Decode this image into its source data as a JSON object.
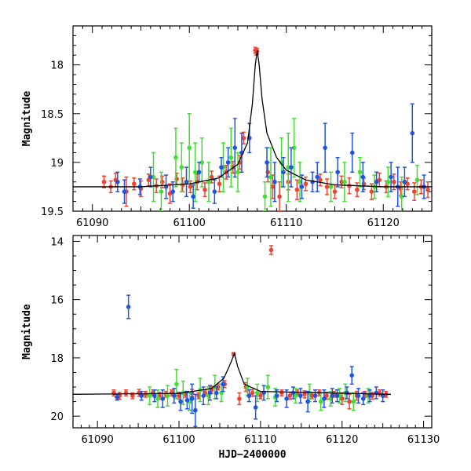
{
  "chart_data": [
    {
      "type": "scatter",
      "panel": "top",
      "title": "",
      "xlabel": "",
      "ylabel": "Magnitude",
      "xlim": [
        61088,
        61125
      ],
      "ylim": [
        19.5,
        17.6
      ],
      "y_inverted": true,
      "xticks": [
        61090,
        61100,
        61110,
        61120
      ],
      "xtick_labels": [
        "61090",
        "61100",
        "61110",
        "61120"
      ],
      "yticks": [
        18,
        18.5,
        19,
        19.5
      ],
      "ytick_labels": [
        "18",
        "18.5",
        "19",
        "19.5"
      ],
      "model_curve": {
        "x": [
          61088,
          61095,
          61100,
          61103,
          61105,
          61106,
          61106.5,
          61106.8,
          61107,
          61107.2,
          61107.5,
          61108,
          61109,
          61110,
          61112,
          61115,
          61120,
          61125
        ],
        "y": [
          19.25,
          19.25,
          19.22,
          19.16,
          19.02,
          18.8,
          18.4,
          18.0,
          17.85,
          18.0,
          18.35,
          18.7,
          18.95,
          19.08,
          19.18,
          19.23,
          19.25,
          19.25
        ]
      },
      "series": [
        {
          "name": "red",
          "color": "#ee4433",
          "x": [
            61091.2,
            61091.9,
            61092.4,
            61093.5,
            61094.3,
            61095.0,
            61095.8,
            61096.6,
            61097.2,
            61098.0,
            61098.7,
            61099.3,
            61100.1,
            61100.8,
            61101.6,
            61102.3,
            61103.1,
            61103.8,
            61104.5,
            61105.2,
            61105.6,
            61106.8,
            61106.9,
            61107.0,
            61108.1,
            61108.6,
            61109.3,
            61110.2,
            61111.1,
            61112.0,
            61113.5,
            61114.2,
            61115.0,
            61115.7,
            61116.5,
            61117.3,
            61118.0,
            61118.8,
            61119.6,
            61120.3,
            61121.1,
            61121.8,
            61122.5,
            61123.2,
            61123.9,
            61124.6
          ],
          "y": [
            19.2,
            19.25,
            19.18,
            19.3,
            19.22,
            19.27,
            19.18,
            19.24,
            19.2,
            19.32,
            19.17,
            19.23,
            19.25,
            19.2,
            19.28,
            19.15,
            19.22,
            19.1,
            19.05,
            19.0,
            18.75,
            17.85,
            17.87,
            17.86,
            19.1,
            19.25,
            19.35,
            19.2,
            19.28,
            19.22,
            19.18,
            19.25,
            19.3,
            19.2,
            19.24,
            19.28,
            19.22,
            19.3,
            19.18,
            19.25,
            19.2,
            19.27,
            19.22,
            19.3,
            19.25,
            19.28
          ],
          "yerr": [
            0.06,
            0.06,
            0.07,
            0.15,
            0.06,
            0.08,
            0.06,
            0.07,
            0.06,
            0.1,
            0.06,
            0.07,
            0.06,
            0.08,
            0.07,
            0.06,
            0.08,
            0.07,
            0.06,
            0.07,
            0.06,
            0.03,
            0.03,
            0.03,
            0.1,
            0.12,
            0.15,
            0.08,
            0.1,
            0.07,
            0.06,
            0.08,
            0.07,
            0.06,
            0.08,
            0.07,
            0.06,
            0.08,
            0.07,
            0.06,
            0.08,
            0.07,
            0.06,
            0.09,
            0.07,
            0.08
          ]
        },
        {
          "name": "green",
          "color": "#44dd33",
          "x": [
            61096.3,
            61097.1,
            61098.6,
            61099.2,
            61100.0,
            61100.6,
            61101.3,
            61102.0,
            61103.5,
            61104.3,
            61105.0,
            61107.8,
            61108.4,
            61109.5,
            61110.2,
            61110.8,
            61111.4,
            61114.6,
            61116.0,
            61117.6,
            61119.1,
            61120.5,
            61121.9,
            61123.5
          ],
          "y": [
            19.15,
            19.3,
            18.95,
            19.05,
            18.85,
            19.1,
            19.0,
            19.2,
            19.05,
            18.95,
            19.1,
            19.35,
            19.15,
            19.0,
            19.05,
            18.85,
            19.2,
            19.25,
            19.2,
            19.1,
            19.25,
            19.2,
            19.35,
            19.18
          ],
          "yerr": [
            0.25,
            0.2,
            0.3,
            0.25,
            0.35,
            0.3,
            0.25,
            0.2,
            0.25,
            0.3,
            0.2,
            0.15,
            0.3,
            0.25,
            0.35,
            0.3,
            0.2,
            0.15,
            0.2,
            0.15,
            0.12,
            0.15,
            0.2,
            0.15
          ]
        },
        {
          "name": "blue",
          "color": "#2255dd",
          "x": [
            61092.6,
            61093.3,
            61094.9,
            61096.0,
            61097.6,
            61098.3,
            61099.7,
            61100.4,
            61101.0,
            61102.6,
            61103.3,
            61104.0,
            61104.7,
            61105.4,
            61106.2,
            61108.0,
            61108.8,
            61109.7,
            61110.5,
            61111.6,
            61112.7,
            61113.2,
            61114.0,
            61115.3,
            61116.8,
            61117.9,
            61119.3,
            61120.8,
            61121.5,
            61122.2,
            61123.0,
            61124.2
          ],
          "y": [
            19.2,
            19.3,
            19.25,
            19.15,
            19.25,
            19.3,
            19.2,
            19.35,
            19.1,
            19.3,
            19.05,
            19.0,
            18.85,
            18.9,
            18.75,
            19.0,
            19.2,
            19.1,
            19.05,
            19.25,
            19.2,
            19.15,
            18.85,
            19.1,
            18.9,
            19.15,
            19.2,
            19.15,
            19.25,
            19.2,
            18.7,
            19.25
          ],
          "yerr": [
            0.1,
            0.12,
            0.08,
            0.1,
            0.12,
            0.1,
            0.15,
            0.12,
            0.1,
            0.12,
            0.1,
            0.15,
            0.3,
            0.2,
            0.15,
            0.15,
            0.2,
            0.15,
            0.2,
            0.12,
            0.1,
            0.15,
            0.25,
            0.15,
            0.2,
            0.15,
            0.1,
            0.15,
            0.2,
            0.15,
            0.3,
            0.12
          ]
        }
      ]
    },
    {
      "type": "scatter",
      "panel": "bottom",
      "title": "",
      "xlabel": "HJD−2400000",
      "ylabel": "Magnitude",
      "xlim": [
        61087,
        61131
      ],
      "ylim": [
        20.4,
        13.8
      ],
      "y_inverted": true,
      "xticks": [
        61090,
        61100,
        61110,
        61120,
        61130
      ],
      "xtick_labels": [
        "61090",
        "61100",
        "61110",
        "61120",
        "61130"
      ],
      "yticks": [
        14,
        16,
        18,
        20
      ],
      "ytick_labels": [
        "14",
        "16",
        "18",
        "20"
      ],
      "model_curve": {
        "x": [
          61087,
          61100,
          61104,
          61105.5,
          61106.3,
          61106.8,
          61107.2,
          61108,
          61110,
          61126
        ],
        "y": [
          19.25,
          19.22,
          19.05,
          18.7,
          18.2,
          17.85,
          18.3,
          18.9,
          19.15,
          19.25
        ]
      },
      "model_curve_end": 61126,
      "series": [
        {
          "name": "red",
          "color": "#ee4433",
          "x": [
            61092.0,
            61092.7,
            61093.5,
            61094.3,
            61095.1,
            61095.9,
            61096.8,
            61097.6,
            61098.4,
            61099.1,
            61100.0,
            61100.8,
            61101.6,
            61102.4,
            61103.2,
            61104.0,
            61104.8,
            61105.6,
            61106.7,
            61107.4,
            61108.2,
            61109.0,
            61110.0,
            61111.3,
            61112.6,
            61113.6,
            61114.5,
            61115.4,
            61116.3,
            61117.2,
            61118.1,
            61119.0,
            61120.0,
            61120.9,
            61121.8,
            61122.8,
            61123.7,
            61124.6,
            61125.4
          ],
          "y": [
            19.2,
            19.3,
            19.2,
            19.3,
            19.2,
            19.25,
            19.2,
            19.3,
            19.25,
            19.2,
            19.3,
            19.25,
            19.2,
            19.3,
            19.2,
            19.1,
            19.0,
            18.9,
            17.87,
            19.4,
            19.0,
            19.2,
            19.3,
            14.3,
            19.2,
            19.3,
            19.2,
            19.25,
            19.3,
            19.2,
            19.3,
            19.25,
            19.4,
            19.5,
            19.3,
            19.25,
            19.3,
            19.2,
            19.25
          ],
          "yerr": [
            0.1,
            0.12,
            0.1,
            0.1,
            0.12,
            0.1,
            0.1,
            0.12,
            0.1,
            0.1,
            0.12,
            0.1,
            0.12,
            0.1,
            0.1,
            0.12,
            0.1,
            0.12,
            0.05,
            0.2,
            0.15,
            0.12,
            0.1,
            0.15,
            0.1,
            0.12,
            0.1,
            0.12,
            0.1,
            0.1,
            0.12,
            0.1,
            0.2,
            0.25,
            0.15,
            0.1,
            0.12,
            0.1,
            0.1
          ]
        },
        {
          "name": "green",
          "color": "#44dd33",
          "x": [
            61096.4,
            61097.4,
            61098.6,
            61099.7,
            61100.5,
            61101.3,
            61102.6,
            61103.6,
            61104.4,
            61105.2,
            61108.4,
            61109.6,
            61110.9,
            61111.8,
            61114.3,
            61116.0,
            61117.4,
            61118.6,
            61119.7,
            61120.4,
            61121.4,
            61123.2
          ],
          "y": [
            19.3,
            19.4,
            19.3,
            18.9,
            19.2,
            19.5,
            19.1,
            19.3,
            19.0,
            19.2,
            19.0,
            19.2,
            19.0,
            19.35,
            19.3,
            19.2,
            19.5,
            19.4,
            19.3,
            19.2,
            19.5,
            19.3
          ],
          "yerr": [
            0.3,
            0.3,
            0.35,
            0.5,
            0.4,
            0.3,
            0.4,
            0.3,
            0.4,
            0.3,
            0.3,
            0.3,
            0.4,
            0.3,
            0.25,
            0.3,
            0.3,
            0.25,
            0.25,
            0.3,
            0.3,
            0.25
          ]
        },
        {
          "name": "blue",
          "color": "#2255dd",
          "x": [
            61092.4,
            61093.8,
            61095.4,
            61097.0,
            61098.0,
            61099.4,
            61100.2,
            61101.0,
            61101.6,
            61102.0,
            61103.0,
            61103.8,
            61104.6,
            61105.4,
            61108.6,
            61109.4,
            61110.4,
            61112.0,
            61113.2,
            61114.0,
            61114.9,
            61115.8,
            61116.7,
            61117.8,
            61118.8,
            61119.4,
            61120.6,
            61121.2,
            61122.0,
            61122.6,
            61123.4,
            61124.2,
            61125.0
          ],
          "y": [
            19.35,
            16.25,
            19.3,
            19.3,
            19.4,
            19.3,
            19.5,
            19.45,
            19.4,
            19.8,
            19.3,
            19.2,
            19.2,
            18.9,
            19.3,
            19.7,
            19.2,
            19.3,
            19.4,
            19.2,
            19.3,
            19.5,
            19.3,
            19.4,
            19.3,
            19.3,
            19.2,
            18.6,
            19.3,
            19.4,
            19.3,
            19.2,
            19.3
          ],
          "yerr": [
            0.1,
            0.4,
            0.15,
            0.2,
            0.3,
            0.25,
            0.3,
            0.3,
            0.5,
            0.55,
            0.3,
            0.25,
            0.2,
            0.25,
            0.2,
            0.4,
            0.25,
            0.2,
            0.3,
            0.2,
            0.25,
            0.35,
            0.2,
            0.3,
            0.25,
            0.2,
            0.2,
            0.3,
            0.25,
            0.2,
            0.2,
            0.2,
            0.2
          ]
        }
      ]
    }
  ]
}
